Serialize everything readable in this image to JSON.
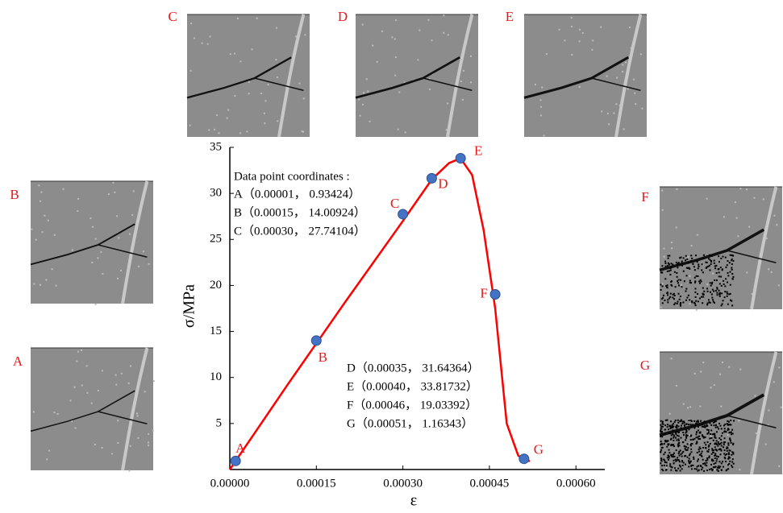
{
  "chart_data": {
    "type": "line",
    "xlabel": "ε",
    "ylabel": "σ/MPa",
    "xlim": [
      0,
      0.00065
    ],
    "ylim": [
      0,
      35
    ],
    "xticks": [
      {
        "value": 0,
        "label": "0.00000"
      },
      {
        "value": 0.00015,
        "label": "0.00015"
      },
      {
        "value": 0.0003,
        "label": "0.00030"
      },
      {
        "value": 0.00045,
        "label": "0.00045"
      },
      {
        "value": 0.0006,
        "label": "0.00060"
      }
    ],
    "yticks": [
      5,
      10,
      15,
      20,
      25,
      30,
      35
    ],
    "series": [
      {
        "color": "#ff0000",
        "x": [
          0,
          5e-05,
          0.0001,
          0.00015,
          0.0002,
          0.00025,
          0.0003,
          0.00035,
          0.00038,
          0.0004,
          0.00042,
          0.00044,
          0.00046,
          0.00048,
          0.0005,
          0.00051,
          0.00052
        ],
        "values": [
          0,
          4.6,
          9.2,
          13.7,
          18.2,
          22.6,
          27,
          31.5,
          33.3,
          33.8,
          32,
          26,
          17.5,
          5,
          1.5,
          1.1,
          0.9
        ]
      },
      {
        "color": "#4472c4",
        "labels": [
          "A",
          "B",
          "C",
          "D",
          "E",
          "F",
          "G"
        ],
        "x": [
          1e-05,
          0.00015,
          0.0003,
          0.00035,
          0.0004,
          0.00046,
          0.00051
        ],
        "values": [
          0.93424,
          14.00924,
          27.74104,
          31.64364,
          33.81732,
          19.03392,
          1.16343
        ]
      }
    ],
    "annotation_heading": "Data point coordinates :",
    "annotations": [
      "A（0.00001， 0.93424）",
      "B（0.00015， 14.00924）",
      "C（0.00030， 27.74104）",
      "D（0.00035， 31.64364）",
      "E（0.00040， 33.81732）",
      "F（0.00046， 19.03392）",
      "G（0.00051， 1.16343）"
    ],
    "panel_labels": [
      "A",
      "B",
      "C",
      "D",
      "E",
      "F",
      "G"
    ]
  }
}
